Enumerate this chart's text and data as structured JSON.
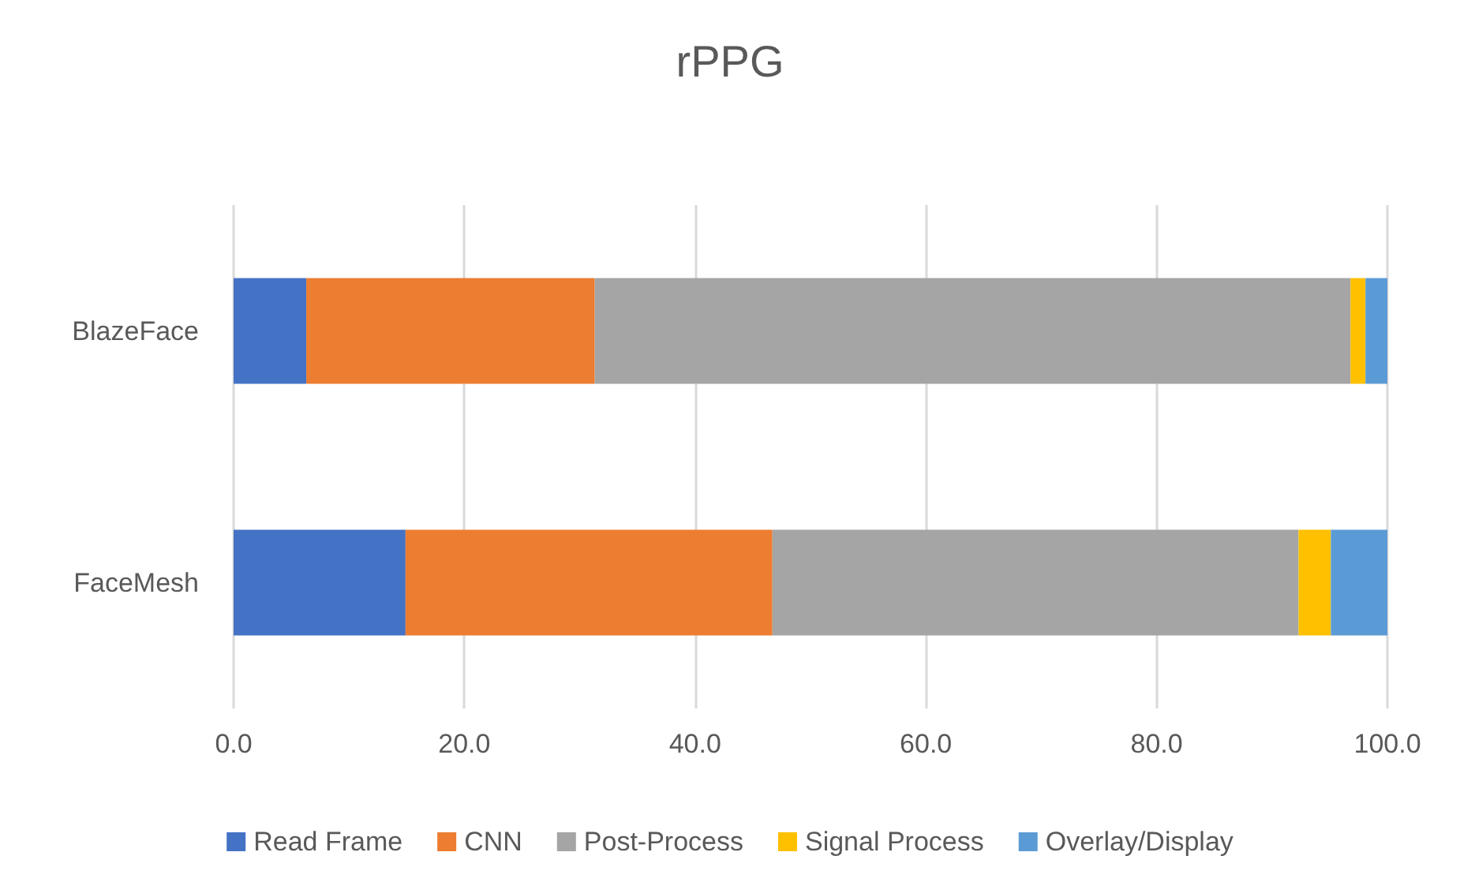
{
  "chart_data": {
    "type": "bar",
    "title": "rPPG",
    "orientation": "horizontal",
    "stacked": true,
    "categories": [
      "BlazeFace",
      "FaceMesh"
    ],
    "series": [
      {
        "name": "Read Frame",
        "color": "#4472c4",
        "values": [
          6.3,
          14.9
        ]
      },
      {
        "name": "CNN",
        "color": "#ed7d31",
        "values": [
          25.0,
          31.8
        ]
      },
      {
        "name": "Post-Process",
        "color": "#a5a5a5",
        "values": [
          65.5,
          45.6
        ]
      },
      {
        "name": "Signal Process",
        "color": "#ffc000",
        "values": [
          1.3,
          2.8
        ]
      },
      {
        "name": "Overlay/Display",
        "color": "#5b9bd5",
        "values": [
          1.9,
          4.9
        ]
      }
    ],
    "xlim": [
      0,
      100
    ],
    "xticks": [
      {
        "value": 0,
        "label": "0.0"
      },
      {
        "value": 20,
        "label": "20.0"
      },
      {
        "value": 40,
        "label": "40.0"
      },
      {
        "value": 60,
        "label": "60.0"
      },
      {
        "value": 80,
        "label": "80.0"
      },
      {
        "value": 100,
        "label": "100.0"
      }
    ],
    "grid": "x",
    "legend": "bottom"
  }
}
